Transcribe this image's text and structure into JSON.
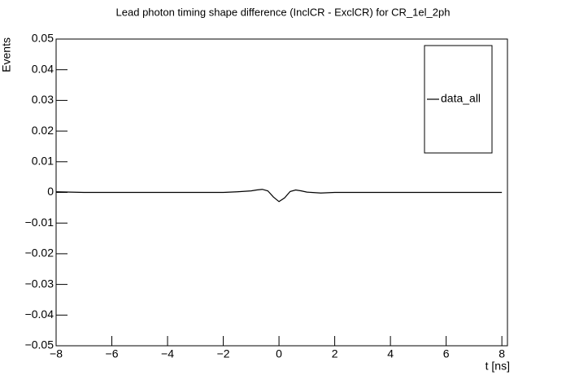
{
  "chart_data": {
    "type": "line",
    "title": "Lead photon timing shape difference (InclCR - ExclCR) for CR_1el_2ph",
    "x_label": "t [ns]",
    "y_label": "Events",
    "x": [
      -8,
      -7,
      -6,
      -5,
      -4,
      -3,
      -2,
      -1.5,
      -1,
      -0.8,
      -0.6,
      -0.4,
      -0.2,
      0,
      0.2,
      0.4,
      0.6,
      0.8,
      1,
      1.5,
      2,
      3,
      4,
      5,
      6,
      7,
      8
    ],
    "series": [
      {
        "name": "data_all",
        "color": "#000000",
        "values": [
          0.0002,
          0,
          0,
          0,
          0,
          0,
          0,
          0.0002,
          0.0005,
          0.0008,
          0.001,
          0.0005,
          -0.0015,
          -0.003,
          -0.0018,
          0.0003,
          0.0008,
          0.0005,
          0.0001,
          -0.0002,
          0,
          0,
          0,
          0,
          0,
          0,
          0
        ]
      }
    ],
    "xlim": [
      -8,
      8.2
    ],
    "ylim": [
      -0.05,
      0.05
    ],
    "xticks": [
      {
        "value": -8,
        "label": "−8"
      },
      {
        "value": -6,
        "label": "−6"
      },
      {
        "value": -4,
        "label": "−4"
      },
      {
        "value": -2,
        "label": "−2"
      },
      0,
      2,
      4,
      6,
      8
    ],
    "yticks": [
      {
        "value": -0.05,
        "label": "−0.05"
      },
      {
        "value": -0.04,
        "label": "−0.04"
      },
      {
        "value": -0.03,
        "label": "−0.03"
      },
      {
        "value": -0.02,
        "label": "−0.02"
      },
      {
        "value": -0.01,
        "label": "−0.01"
      },
      0,
      0.01,
      0.02,
      0.03,
      0.04,
      0.05
    ],
    "legend": "top-right"
  }
}
